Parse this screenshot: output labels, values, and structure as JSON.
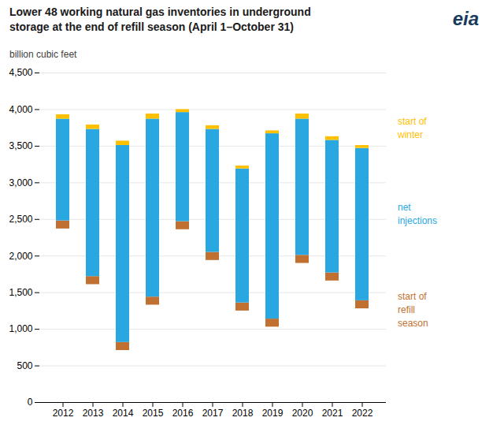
{
  "chart_data": {
    "type": "bar",
    "stacked": true,
    "title": "Lower 48 working natural gas inventories in underground\nstorage at the end of refill season (April 1–October 31)",
    "ylabel": "billion cubic feet",
    "annotations": [
      "eia"
    ],
    "categories": [
      "2012",
      "2013",
      "2014",
      "2015",
      "2016",
      "2017",
      "2018",
      "2019",
      "2020",
      "2021",
      "2022"
    ],
    "base": [
      2370,
      1610,
      710,
      1330,
      2360,
      1940,
      1250,
      1030,
      1900,
      1660,
      1280
    ],
    "series": [
      {
        "name": "start of\nrefill\nseason",
        "color": "#c07030",
        "values": [
          110,
          110,
          110,
          110,
          110,
          110,
          110,
          110,
          110,
          110,
          110
        ]
      },
      {
        "name": "net\ninjections",
        "color": "#29a7e1",
        "values": [
          1390,
          2010,
          2690,
          2430,
          1490,
          1680,
          1830,
          2530,
          1860,
          1810,
          2080
        ]
      },
      {
        "name": "start of\nwinter",
        "color": "#ffc000",
        "values": [
          60,
          60,
          60,
          70,
          40,
          50,
          40,
          40,
          70,
          50,
          40
        ]
      }
    ],
    "ylim": [
      0,
      4500
    ],
    "yticks": [
      0,
      500,
      {
        "value": 1000,
        "label": "1,000"
      },
      {
        "value": 1500,
        "label": "1,500"
      },
      {
        "value": 2000,
        "label": "2,000"
      },
      {
        "value": 2500,
        "label": "2,500"
      },
      {
        "value": 3000,
        "label": "3,000"
      },
      {
        "value": 3500,
        "label": "3,500"
      },
      {
        "value": 4000,
        "label": "4,000"
      },
      {
        "value": 4500,
        "label": "4,500"
      }
    ],
    "grid": true,
    "legend": "right"
  }
}
